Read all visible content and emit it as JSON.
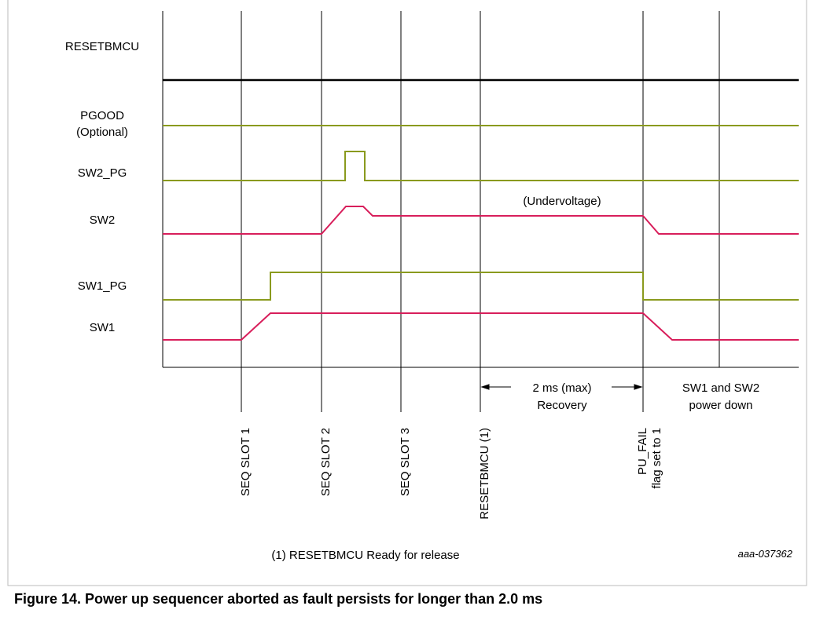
{
  "signals": [
    "RESETBMCU",
    "PGOOD",
    "(Optional)",
    "SW2_PG",
    "SW2",
    "SW1_PG",
    "SW1"
  ],
  "annotation": "(Undervoltage)",
  "recovery": [
    "2 ms (max)",
    "Recovery"
  ],
  "power_down": [
    "SW1 and SW2",
    "power down"
  ],
  "markers": [
    "SEQ SLOT 1",
    "SEQ SLOT 2",
    "SEQ SLOT 3",
    "RESETBMCU (1)",
    "PU_FAIL",
    "flag set to 1"
  ],
  "footnote": "(1) RESETBMCU Ready for release",
  "figure_id": "aaa-037362",
  "caption": "Figure 14.  Power up sequencer aborted as fault persists for longer than 2.0 ms"
}
